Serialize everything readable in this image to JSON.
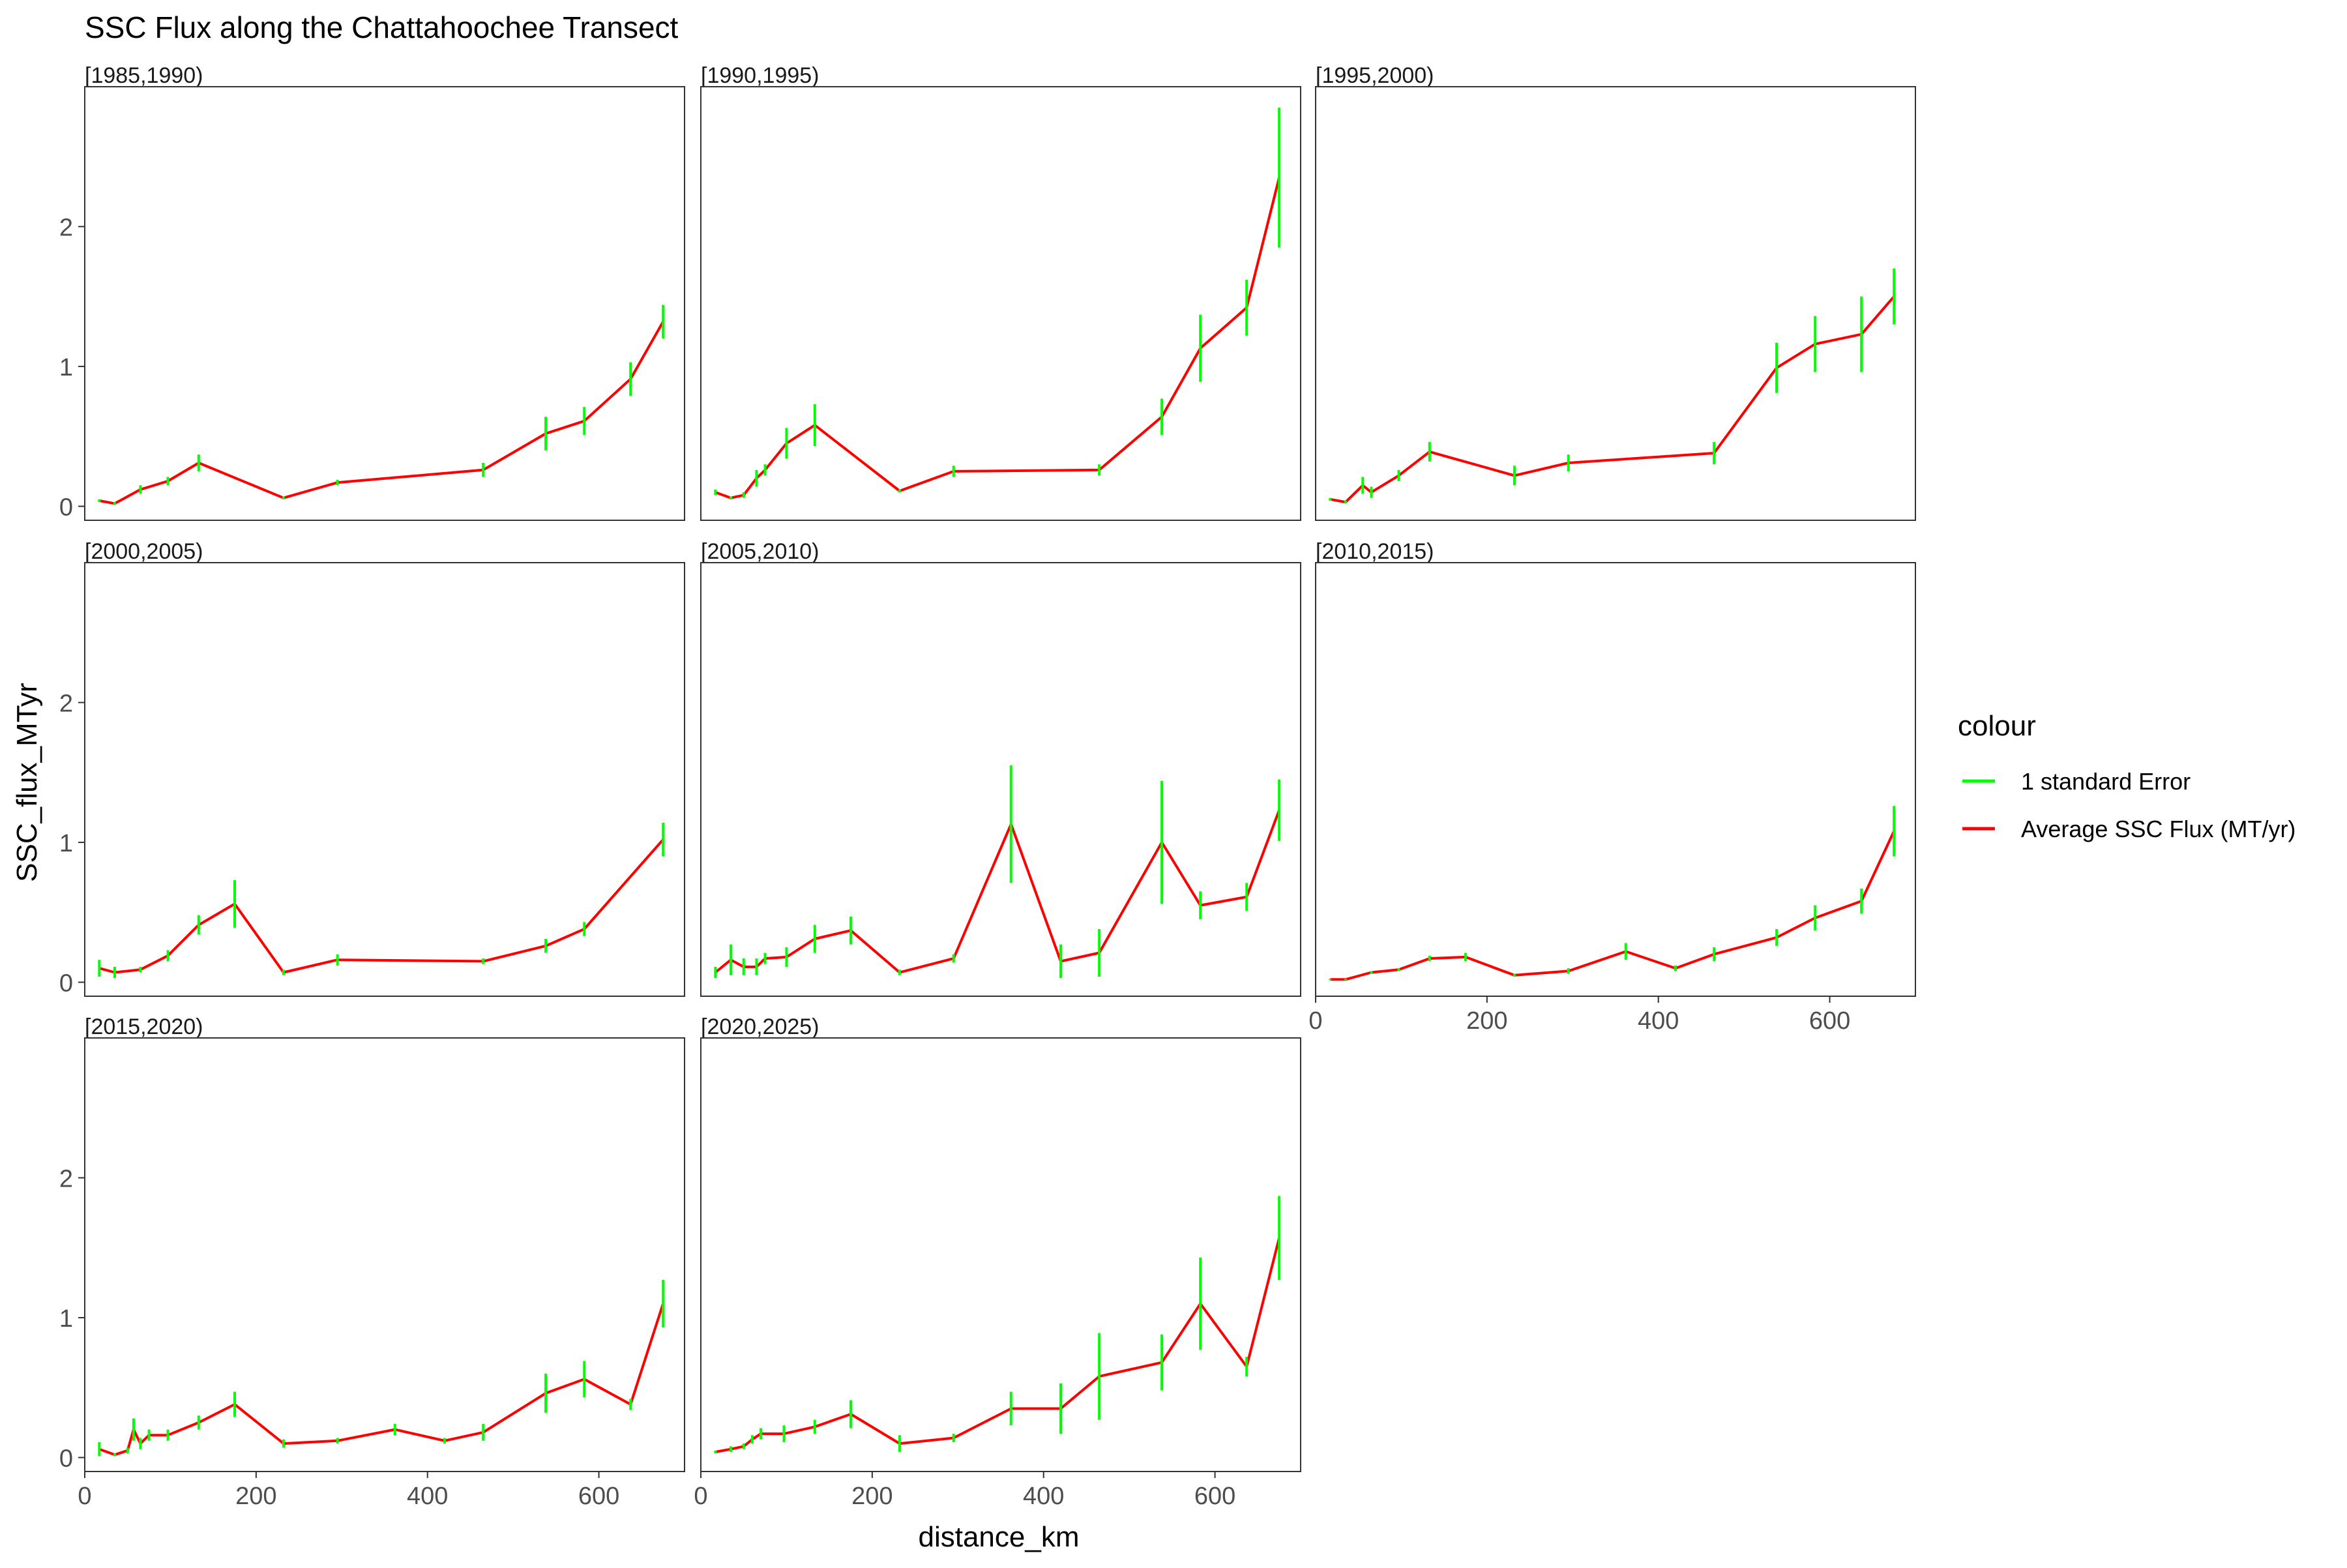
{
  "chart_data": {
    "type": "line",
    "title": "SSC Flux along the Chattahoochee Transect",
    "xlabel": "distance_km",
    "ylabel": "SSC_flux_MTyr",
    "xlim": [
      0,
      700
    ],
    "ylim": [
      -0.1,
      3.0
    ],
    "x_ticks": [
      0,
      200,
      400,
      600
    ],
    "y_ticks": [
      0,
      1,
      2
    ],
    "grid": false,
    "legend": {
      "title": "colour",
      "position": "right",
      "entries": [
        {
          "label": "1 standard Error",
          "color": "#00ff00"
        },
        {
          "label": "Average SSC Flux (MT/yr)",
          "color": "#ff0000"
        }
      ]
    },
    "colors": {
      "line": "#ff0000",
      "error": "#00ff00"
    },
    "panels": [
      {
        "label": "[1985,1990)",
        "x": [
          17,
          35,
          65,
          97,
          133,
          232,
          295,
          465,
          538,
          583,
          637,
          675
        ],
        "y": [
          0.04,
          0.02,
          0.12,
          0.18,
          0.31,
          0.06,
          0.17,
          0.26,
          0.52,
          0.61,
          0.91,
          1.32
        ],
        "se": [
          0.01,
          0.01,
          0.03,
          0.03,
          0.06,
          0.01,
          0.02,
          0.05,
          0.12,
          0.1,
          0.12,
          0.12
        ]
      },
      {
        "label": "[1990,1995)",
        "x": [
          17,
          35,
          50,
          65,
          75,
          100,
          133,
          232,
          295,
          465,
          538,
          583,
          637,
          675
        ],
        "y": [
          0.1,
          0.06,
          0.08,
          0.2,
          0.26,
          0.45,
          0.58,
          0.11,
          0.25,
          0.26,
          0.64,
          1.13,
          1.42,
          2.35
        ],
        "se": [
          0.02,
          0.01,
          0.02,
          0.06,
          0.04,
          0.11,
          0.15,
          0.01,
          0.04,
          0.04,
          0.13,
          0.24,
          0.2,
          0.5
        ]
      },
      {
        "label": "[1995,2000)",
        "x": [
          17,
          35,
          55,
          65,
          97,
          133,
          232,
          295,
          465,
          538,
          583,
          637,
          675
        ],
        "y": [
          0.05,
          0.03,
          0.15,
          0.1,
          0.22,
          0.39,
          0.22,
          0.31,
          0.38,
          0.99,
          1.16,
          1.23,
          1.5
        ],
        "se": [
          0.01,
          0.01,
          0.06,
          0.04,
          0.04,
          0.07,
          0.07,
          0.06,
          0.08,
          0.18,
          0.2,
          0.27,
          0.2
        ]
      },
      {
        "label": "[2000,2005)",
        "x": [
          17,
          35,
          65,
          97,
          133,
          175,
          232,
          295,
          465,
          538,
          583,
          675
        ],
        "y": [
          0.1,
          0.07,
          0.09,
          0.19,
          0.41,
          0.56,
          0.07,
          0.16,
          0.15,
          0.26,
          0.38,
          1.02
        ],
        "se": [
          0.06,
          0.04,
          0.02,
          0.04,
          0.07,
          0.17,
          0.02,
          0.04,
          0.02,
          0.05,
          0.05,
          0.12
        ]
      },
      {
        "label": "[2005,2010)",
        "x": [
          17,
          35,
          50,
          65,
          75,
          100,
          133,
          175,
          232,
          295,
          362,
          420,
          465,
          538,
          583,
          637,
          675
        ],
        "y": [
          0.07,
          0.16,
          0.11,
          0.11,
          0.17,
          0.18,
          0.31,
          0.37,
          0.07,
          0.17,
          1.13,
          0.15,
          0.21,
          1.0,
          0.55,
          0.61,
          1.23
        ],
        "se": [
          0.04,
          0.11,
          0.06,
          0.06,
          0.04,
          0.07,
          0.1,
          0.1,
          0.02,
          0.03,
          0.42,
          0.12,
          0.17,
          0.44,
          0.1,
          0.1,
          0.22
        ]
      },
      {
        "label": "[2010,2015)",
        "x": [
          17,
          35,
          65,
          97,
          133,
          175,
          232,
          295,
          362,
          420,
          465,
          538,
          583,
          637,
          675
        ],
        "y": [
          0.02,
          0.02,
          0.07,
          0.09,
          0.17,
          0.18,
          0.05,
          0.08,
          0.22,
          0.1,
          0.2,
          0.32,
          0.46,
          0.58,
          1.08
        ],
        "se": [
          0.005,
          0.005,
          0.01,
          0.01,
          0.02,
          0.03,
          0.01,
          0.02,
          0.06,
          0.02,
          0.05,
          0.06,
          0.09,
          0.09,
          0.18
        ]
      },
      {
        "label": "[2015,2020)",
        "x": [
          17,
          35,
          50,
          57,
          65,
          75,
          97,
          133,
          175,
          232,
          295,
          362,
          420,
          465,
          538,
          583,
          637,
          675
        ],
        "y": [
          0.06,
          0.02,
          0.05,
          0.2,
          0.1,
          0.16,
          0.16,
          0.25,
          0.38,
          0.1,
          0.12,
          0.2,
          0.12,
          0.18,
          0.46,
          0.56,
          0.38,
          1.1
        ],
        "se": [
          0.05,
          0.01,
          0.02,
          0.08,
          0.04,
          0.04,
          0.04,
          0.05,
          0.09,
          0.03,
          0.02,
          0.04,
          0.02,
          0.06,
          0.14,
          0.13,
          0.04,
          0.17
        ]
      },
      {
        "label": "[2020,2025)",
        "x": [
          17,
          35,
          50,
          60,
          70,
          97,
          133,
          175,
          232,
          295,
          362,
          420,
          465,
          538,
          583,
          637,
          675
        ],
        "y": [
          0.04,
          0.06,
          0.08,
          0.13,
          0.17,
          0.17,
          0.22,
          0.31,
          0.1,
          0.14,
          0.35,
          0.35,
          0.58,
          0.68,
          1.1,
          0.65,
          1.57
        ],
        "se": [
          0.01,
          0.02,
          0.02,
          0.03,
          0.04,
          0.06,
          0.05,
          0.1,
          0.06,
          0.03,
          0.12,
          0.18,
          0.31,
          0.2,
          0.33,
          0.07,
          0.3
        ]
      }
    ]
  }
}
